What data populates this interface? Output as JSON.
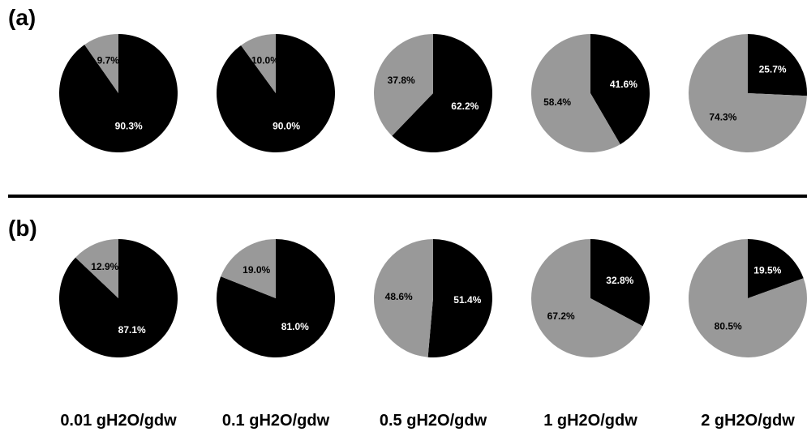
{
  "chart_data": {
    "type": "pie",
    "panels": [
      {
        "label": "(a)",
        "pies": [
          {
            "category": "0.01 gH2O/gdw",
            "black": 90.3,
            "gray": 9.7,
            "black_label": "90.3%",
            "gray_label": "9.7%"
          },
          {
            "category": "0.1 gH2O/gdw",
            "black": 90.0,
            "gray": 10.0,
            "black_label": "90.0%",
            "gray_label": "10.0%"
          },
          {
            "category": "0.5 gH2O/gdw",
            "black": 62.2,
            "gray": 37.8,
            "black_label": "62.2%",
            "gray_label": "37.8%"
          },
          {
            "category": "1 gH2O/gdw",
            "black": 41.6,
            "gray": 58.4,
            "black_label": "41.6%",
            "gray_label": "58.4%"
          },
          {
            "category": "2 gH2O/gdw",
            "black": 25.7,
            "gray": 74.3,
            "black_label": "25.7%",
            "gray_label": "74.3%"
          }
        ]
      },
      {
        "label": "(b)",
        "pies": [
          {
            "category": "0.01 gH2O/gdw",
            "black": 87.1,
            "gray": 12.9,
            "black_label": "87.1%",
            "gray_label": "12.9%"
          },
          {
            "category": "0.1 gH2O/gdw",
            "black": 81.0,
            "gray": 19.0,
            "black_label": "81.0%",
            "gray_label": "19.0%"
          },
          {
            "category": "0.5 gH2O/gdw",
            "black": 51.4,
            "gray": 48.6,
            "black_label": "51.4%",
            "gray_label": "48.6%"
          },
          {
            "category": "1 gH2O/gdw",
            "black": 32.8,
            "gray": 67.2,
            "black_label": "32.8%",
            "gray_label": "67.2%"
          },
          {
            "category": "2 gH2O/gdw",
            "black": 19.5,
            "gray": 80.5,
            "black_label": "19.5%",
            "gray_label": "80.5%"
          }
        ]
      }
    ],
    "categories": [
      "0.01 gH2O/gdw",
      "0.1 gH2O/gdw",
      "0.5 gH2O/gdw",
      "1 gH2O/gdw",
      "2 gH2O/gdw"
    ],
    "colors": {
      "black_slice": "#000000",
      "gray_slice": "#999999",
      "label_on_black": "#ffffff",
      "label_on_gray": "#000000"
    }
  }
}
